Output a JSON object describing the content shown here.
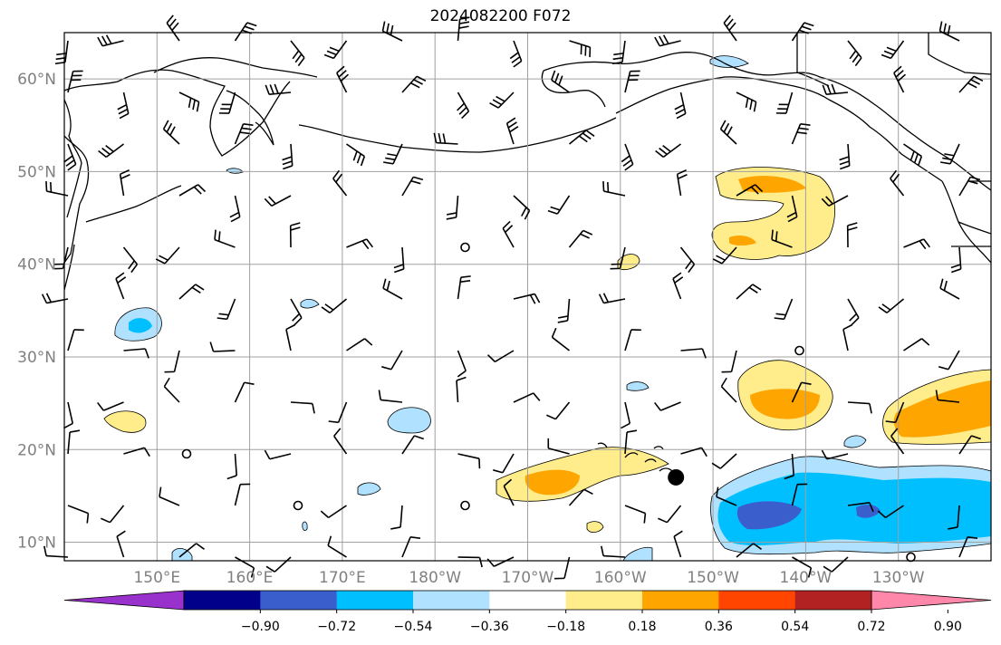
{
  "title": "2024082200 F072",
  "map": {
    "lon_range": [
      140,
      240
    ],
    "lat_range": [
      8,
      65
    ],
    "lat_ticks": [
      "60°N",
      "50°N",
      "40°N",
      "30°N",
      "20°N",
      "10°N"
    ],
    "lat_values": [
      60,
      50,
      40,
      30,
      20,
      10
    ],
    "lon_ticks": [
      "150°E",
      "160°E",
      "170°E",
      "180°W",
      "170°W",
      "160°W",
      "150°W",
      "140°W",
      "130°W"
    ],
    "lon_values": [
      150,
      160,
      170,
      180,
      190,
      200,
      210,
      220,
      230
    ],
    "tick_color": "#808080",
    "grid_color": "#a0a0a0",
    "storm_marker": {
      "lon": 206,
      "lat": 17
    }
  },
  "colorbar": {
    "ticks": [
      "−0.90",
      "−0.72",
      "−0.54",
      "−0.36",
      "−0.18",
      "0.18",
      "0.36",
      "0.54",
      "0.72",
      "0.90"
    ],
    "colors": [
      "#9932cc",
      "#00008b",
      "#3a5fcd",
      "#00bfff",
      "#b0e2ff",
      "#ffffff",
      "#ffec8b",
      "#ffa500",
      "#ff4500",
      "#b22222",
      "#ff88aa"
    ]
  }
}
